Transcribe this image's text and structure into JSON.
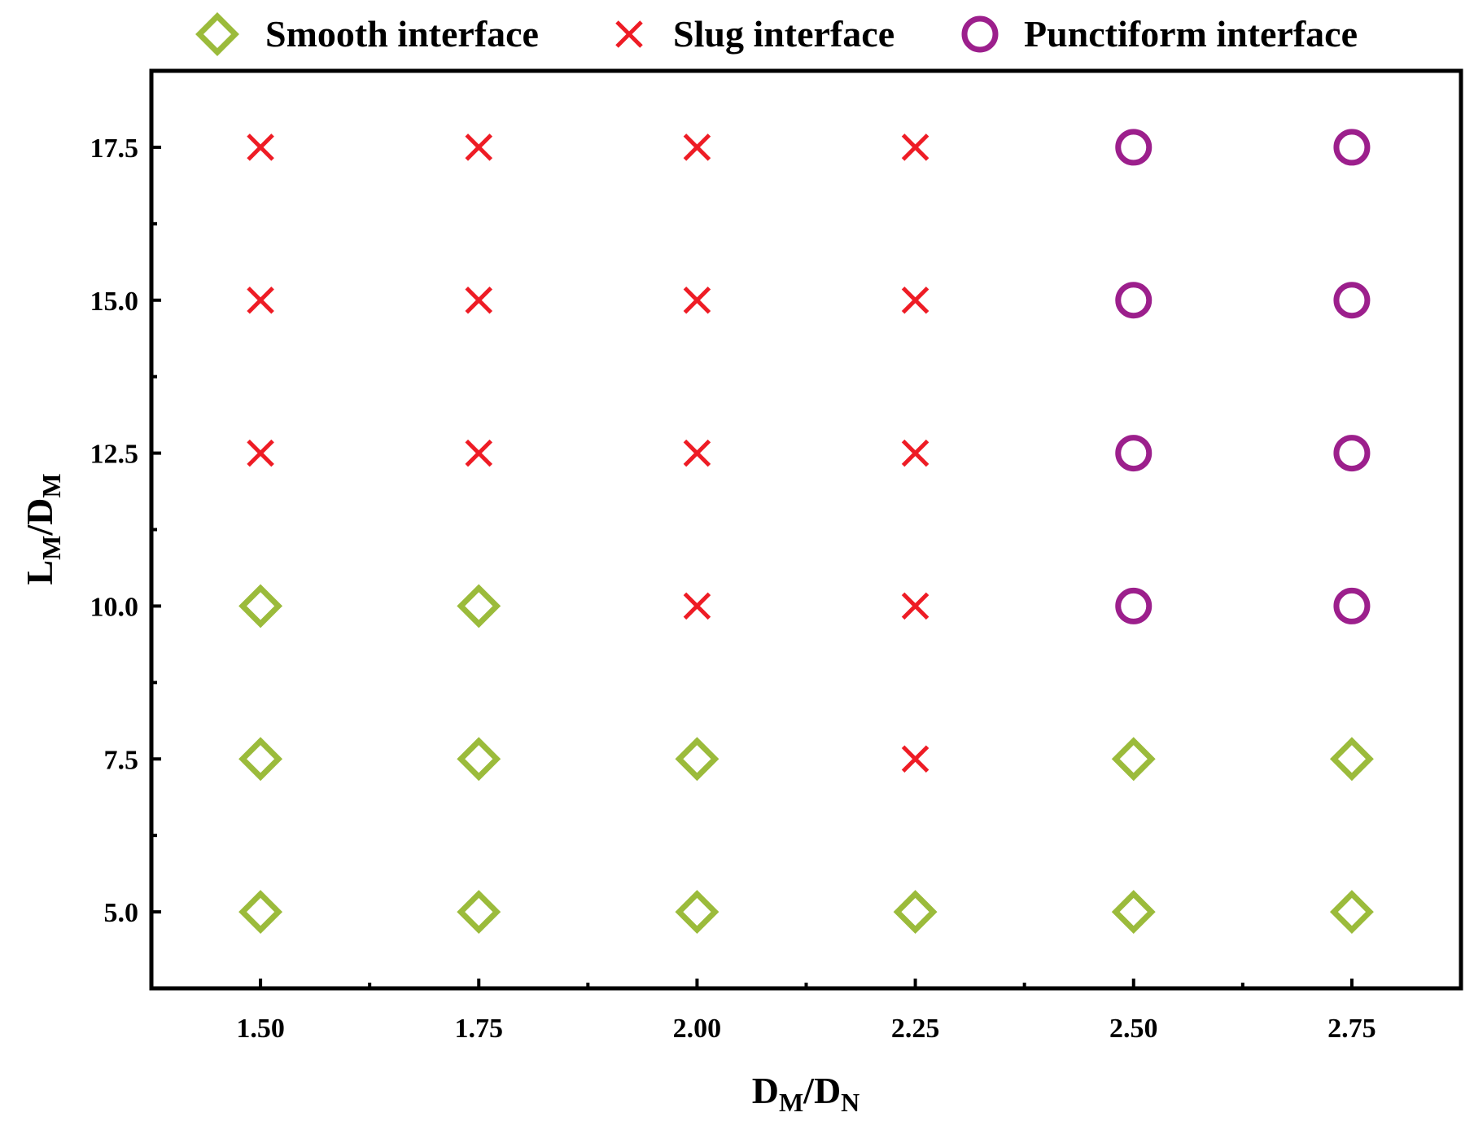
{
  "chart_data": {
    "type": "scatter",
    "title": "",
    "xlabel": {
      "main": "D",
      "sub": "M",
      "sep": "/",
      "main2": "D",
      "sub2": "N"
    },
    "ylabel": {
      "main": "L",
      "sub": "M",
      "sep": "/",
      "main2": "D",
      "sub2": "M"
    },
    "xlim": [
      1.375,
      2.875
    ],
    "ylim": [
      3.75,
      18.75
    ],
    "x_ticks": [
      1.5,
      1.75,
      2.0,
      2.25,
      2.5,
      2.75
    ],
    "x_tick_labels": [
      "1.50",
      "1.75",
      "2.00",
      "2.25",
      "2.50",
      "2.75"
    ],
    "x_minor_ticks": [
      1.625,
      1.875,
      2.125,
      2.375,
      2.625
    ],
    "y_ticks": [
      5.0,
      7.5,
      10.0,
      12.5,
      15.0,
      17.5
    ],
    "y_tick_labels": [
      "5.0",
      "7.5",
      "10.0",
      "12.5",
      "15.0",
      "17.5"
    ],
    "y_minor_ticks": [
      6.25,
      8.75,
      11.25,
      13.75,
      16.25
    ],
    "grid": false,
    "legend_position": "top",
    "series": [
      {
        "name": "Smooth interface",
        "marker": "diamond",
        "color": "#9bbb3b",
        "points": [
          [
            1.5,
            5.0
          ],
          [
            1.75,
            5.0
          ],
          [
            2.0,
            5.0
          ],
          [
            2.25,
            5.0
          ],
          [
            2.5,
            5.0
          ],
          [
            2.75,
            5.0
          ],
          [
            1.5,
            7.5
          ],
          [
            1.75,
            7.5
          ],
          [
            2.0,
            7.5
          ],
          [
            2.5,
            7.5
          ],
          [
            2.75,
            7.5
          ],
          [
            1.5,
            10.0
          ],
          [
            1.75,
            10.0
          ]
        ]
      },
      {
        "name": "Slug interface",
        "marker": "x",
        "color": "#ee1c25",
        "points": [
          [
            2.25,
            7.5
          ],
          [
            2.0,
            10.0
          ],
          [
            2.25,
            10.0
          ],
          [
            1.5,
            12.5
          ],
          [
            1.75,
            12.5
          ],
          [
            2.0,
            12.5
          ],
          [
            2.25,
            12.5
          ],
          [
            1.5,
            15.0
          ],
          [
            1.75,
            15.0
          ],
          [
            2.0,
            15.0
          ],
          [
            2.25,
            15.0
          ],
          [
            1.5,
            17.5
          ],
          [
            1.75,
            17.5
          ],
          [
            2.0,
            17.5
          ],
          [
            2.25,
            17.5
          ]
        ]
      },
      {
        "name": "Punctiform interface",
        "marker": "circle",
        "color": "#9c1f8c",
        "points": [
          [
            2.5,
            10.0
          ],
          [
            2.75,
            10.0
          ],
          [
            2.5,
            12.5
          ],
          [
            2.75,
            12.5
          ],
          [
            2.5,
            15.0
          ],
          [
            2.75,
            15.0
          ],
          [
            2.5,
            17.5
          ],
          [
            2.75,
            17.5
          ]
        ]
      }
    ]
  }
}
